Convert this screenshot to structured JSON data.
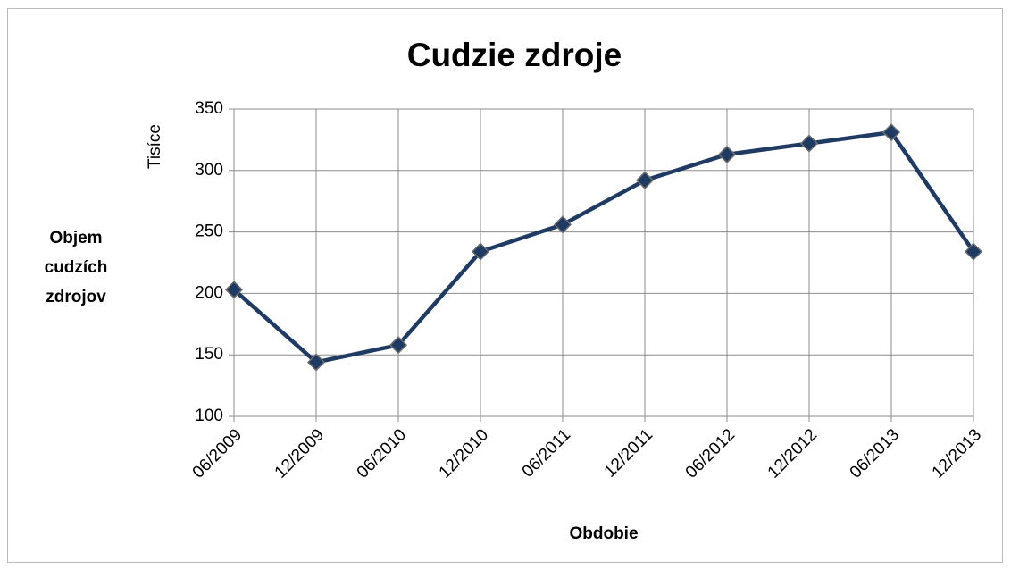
{
  "chart_data": {
    "type": "line",
    "title": "Cudzie zdroje",
    "y_label": "Objem cudzích zdrojov",
    "y_unit_label": "Tisíce",
    "x_label": "Obdobie",
    "categories": [
      "06/2009",
      "12/2009",
      "06/2010",
      "12/2010",
      "06/2011",
      "12/2011",
      "06/2012",
      "12/2012",
      "06/2013",
      "12/2013"
    ],
    "series": [
      {
        "name": "Cudzie zdroje",
        "color": "#1f3b63",
        "values": [
          203,
          144,
          158,
          234,
          256,
          292,
          313,
          322,
          331,
          234
        ]
      }
    ],
    "ylim": [
      100,
      350
    ],
    "yticks": [
      100,
      150,
      200,
      250,
      300,
      350
    ],
    "grid": true,
    "marker": "diamond"
  }
}
